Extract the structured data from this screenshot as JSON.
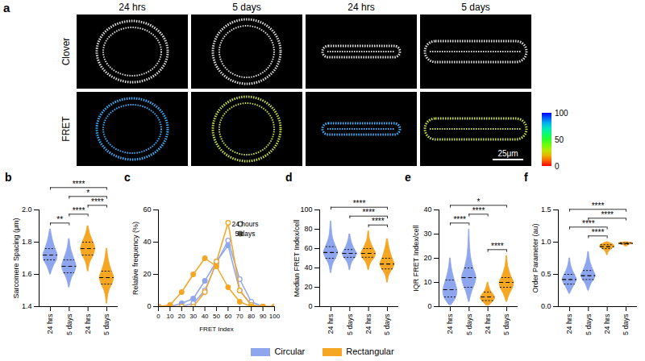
{
  "figure": {
    "panel_a": {
      "label": "a",
      "columns": [
        "24 hrs",
        "5 days",
        "24 hrs",
        "5 days"
      ],
      "rows": [
        "Clover",
        "FRET"
      ],
      "colorbar": {
        "range": [
          0,
          100
        ],
        "ticks": [
          100,
          50,
          0
        ]
      },
      "scale_bar": "25μm"
    },
    "legend": [
      {
        "name": "Circular",
        "color": "#8ea6ee"
      },
      {
        "name": "Rectangular",
        "color": "#f5a623"
      }
    ]
  },
  "chart_data": [
    {
      "label": "b",
      "type": "violin",
      "ylabel": "Sarcomere Spacing (μm)",
      "categories": [
        "24 hrs",
        "5 days",
        "24 hrs",
        "5 days"
      ],
      "colors": [
        "#8ea6ee",
        "#8ea6ee",
        "#f5a623",
        "#f5a623"
      ],
      "ylim": [
        1.4,
        2.0
      ],
      "yticks": [
        1.4,
        1.6,
        1.8,
        {
          "value": 2,
          "label": "2.0"
        }
      ],
      "violins": [
        {
          "y": [
            1.6,
            1.65,
            1.69,
            1.72,
            1.76,
            1.82,
            1.88
          ],
          "width": [
            0.05,
            0.45,
            0.9,
            1.0,
            0.7,
            0.3,
            0.05
          ],
          "median": 1.72,
          "q1": 1.69,
          "q3": 1.76
        },
        {
          "y": [
            1.52,
            1.58,
            1.62,
            1.65,
            1.69,
            1.75,
            1.82
          ],
          "width": [
            0.05,
            0.4,
            0.85,
            1.0,
            0.75,
            0.3,
            0.05
          ],
          "median": 1.65,
          "q1": 1.61,
          "q3": 1.69
        },
        {
          "y": [
            1.62,
            1.68,
            1.72,
            1.76,
            1.8,
            1.85,
            1.9
          ],
          "width": [
            0.05,
            0.35,
            0.8,
            1.0,
            0.75,
            0.3,
            0.05
          ],
          "median": 1.76,
          "q1": 1.72,
          "q3": 1.8
        },
        {
          "y": [
            1.42,
            1.5,
            1.55,
            1.58,
            1.62,
            1.68,
            1.76
          ],
          "width": [
            0.05,
            0.35,
            0.85,
            1.0,
            0.7,
            0.3,
            0.05
          ],
          "median": 1.58,
          "q1": 1.54,
          "q3": 1.62
        }
      ],
      "comparisons": [
        {
          "from": 0,
          "to": 1,
          "label": "**"
        },
        {
          "from": 1,
          "to": 2,
          "label": "****"
        },
        {
          "from": 2,
          "to": 3,
          "label": "****"
        },
        {
          "from": 1,
          "to": 3,
          "label": "*"
        },
        {
          "from": 0,
          "to": 3,
          "label": "****"
        }
      ]
    },
    {
      "label": "c",
      "type": "line",
      "xlabel": "FRET Index",
      "ylabel": "Relative frequency (%)",
      "x": [
        0,
        10,
        20,
        30,
        40,
        50,
        60,
        70,
        80,
        90,
        100
      ],
      "xlim": [
        0,
        100
      ],
      "xticks": [
        0,
        10,
        20,
        30,
        40,
        50,
        60,
        70,
        80,
        90,
        100
      ],
      "ylim": [
        0,
        60
      ],
      "yticks": [
        0,
        20,
        40,
        60
      ],
      "legend": "top-right",
      "series": [
        {
          "name": "24 hours",
          "color": "#8ea6ee",
          "marker": "circle-open",
          "values": [
            0,
            0,
            0,
            2,
            10,
            27,
            41,
            17,
            3,
            0,
            0
          ]
        },
        {
          "name": "5 days",
          "color": "#8ea6ee",
          "marker": "circle",
          "values": [
            0,
            0,
            2,
            5,
            16,
            28,
            38,
            10,
            1,
            0,
            0
          ]
        },
        {
          "name": "24 hours",
          "color": "#f5a623",
          "marker": "circle-open",
          "values": [
            0,
            0,
            0,
            0,
            9,
            28,
            52,
            10,
            1,
            0,
            0
          ]
        },
        {
          "name": "5 days",
          "color": "#f5a623",
          "marker": "circle",
          "values": [
            0,
            1,
            9,
            20,
            30,
            25,
            12,
            3,
            0,
            0,
            0
          ]
        }
      ]
    },
    {
      "label": "d",
      "type": "violin",
      "ylabel": "Median FRET Index/cell",
      "categories": [
        "24 hrs",
        "5 days",
        "24 hrs",
        "5 days"
      ],
      "colors": [
        "#8ea6ee",
        "#8ea6ee",
        "#f5a623",
        "#f5a623"
      ],
      "ylim": [
        0,
        100
      ],
      "yticks": [
        0,
        20,
        40,
        60,
        80,
        100
      ],
      "violins": [
        {
          "y": [
            35,
            45,
            52,
            56,
            62,
            72,
            88
          ],
          "width": [
            0.05,
            0.35,
            0.85,
            1.0,
            0.7,
            0.25,
            0.05
          ],
          "median": 56,
          "q1": 50,
          "q3": 62
        },
        {
          "y": [
            38,
            46,
            52,
            55,
            59,
            66,
            75
          ],
          "width": [
            0.05,
            0.35,
            0.9,
            1.0,
            0.7,
            0.3,
            0.05
          ],
          "median": 55,
          "q1": 51,
          "q3": 59
        },
        {
          "y": [
            38,
            46,
            51,
            55,
            60,
            68,
            78
          ],
          "width": [
            0.05,
            0.4,
            0.9,
            1.0,
            0.7,
            0.25,
            0.05
          ],
          "median": 55,
          "q1": 51,
          "q3": 60
        },
        {
          "y": [
            25,
            34,
            40,
            44,
            50,
            60,
            70
          ],
          "width": [
            0.05,
            0.35,
            0.85,
            1.0,
            0.7,
            0.3,
            0.05
          ],
          "median": 44,
          "q1": 39,
          "q3": 50
        }
      ],
      "comparisons": [
        {
          "from": 2,
          "to": 3,
          "label": "****"
        },
        {
          "from": 1,
          "to": 3,
          "label": "****"
        },
        {
          "from": 0,
          "to": 3,
          "label": "****"
        }
      ]
    },
    {
      "label": "e",
      "type": "violin",
      "ylabel": "IQR FRET Index/cell",
      "categories": [
        "24 hrs",
        "5 days",
        "24 hrs",
        "5 days"
      ],
      "colors": [
        "#8ea6ee",
        "#8ea6ee",
        "#f5a623",
        "#f5a623"
      ],
      "ylim": [
        0,
        40
      ],
      "yticks": [
        0,
        10,
        20,
        30,
        40
      ],
      "violins": [
        {
          "y": [
            0.5,
            3,
            6,
            8,
            12,
            16,
            20
          ],
          "width": [
            0.1,
            0.7,
            1.0,
            0.9,
            0.5,
            0.2,
            0.05
          ],
          "median": 7,
          "q1": 4,
          "q3": 11
        },
        {
          "y": [
            2,
            6,
            10,
            12,
            16,
            22,
            32
          ],
          "width": [
            0.05,
            0.4,
            0.9,
            1.0,
            0.6,
            0.2,
            0.03
          ],
          "median": 12,
          "q1": 8,
          "q3": 16
        },
        {
          "y": [
            0.5,
            2,
            3.5,
            4.5,
            6,
            8,
            10
          ],
          "width": [
            0.2,
            0.7,
            1.0,
            0.9,
            0.5,
            0.2,
            0.05
          ],
          "median": 4,
          "q1": 2.5,
          "q3": 6
        },
        {
          "y": [
            2,
            5,
            8,
            10,
            12,
            16,
            21
          ],
          "width": [
            0.05,
            0.4,
            0.9,
            1.0,
            0.7,
            0.25,
            0.05
          ],
          "median": 10,
          "q1": 8,
          "q3": 12
        }
      ],
      "comparisons": [
        {
          "from": 0,
          "to": 1,
          "label": "****"
        },
        {
          "from": 2,
          "to": 3,
          "label": "****"
        },
        {
          "from": 1,
          "to": 2,
          "label": "****"
        },
        {
          "from": 0,
          "to": 3,
          "label": "*"
        }
      ]
    },
    {
      "label": "f",
      "type": "violin",
      "ylabel": "Order Parameter (au)",
      "categories": [
        "24 hrs",
        "5 days",
        "24 hrs",
        "5 days"
      ],
      "colors": [
        "#8ea6ee",
        "#8ea6ee",
        "#f5a623",
        "#f5a623"
      ],
      "ylim": [
        0,
        1.5
      ],
      "yticks": [
        {
          "value": 0,
          "label": "0.0"
        },
        0.5,
        {
          "value": 1,
          "label": "1.0"
        },
        1.5
      ],
      "violins": [
        {
          "y": [
            0.2,
            0.3,
            0.38,
            0.42,
            0.5,
            0.6,
            0.75
          ],
          "width": [
            0.05,
            0.5,
            0.9,
            1.0,
            0.7,
            0.3,
            0.05
          ],
          "median": 0.42,
          "q1": 0.35,
          "q3": 0.5
        },
        {
          "y": [
            0.25,
            0.35,
            0.44,
            0.48,
            0.56,
            0.68,
            0.85
          ],
          "width": [
            0.05,
            0.4,
            0.9,
            1.0,
            0.7,
            0.3,
            0.05
          ],
          "median": 0.48,
          "q1": 0.42,
          "q3": 0.56
        },
        {
          "y": [
            0.8,
            0.86,
            0.9,
            0.93,
            0.96,
            0.98,
            1.0
          ],
          "width": [
            0.05,
            0.3,
            0.7,
            1.0,
            0.9,
            0.5,
            0.1
          ],
          "median": 0.93,
          "q1": 0.9,
          "q3": 0.96
        },
        {
          "y": [
            0.93,
            0.95,
            0.97,
            0.98,
            0.99,
            0.995,
            1.0
          ],
          "width": [
            0.05,
            0.3,
            0.7,
            1.0,
            0.8,
            0.5,
            0.1
          ],
          "median": 0.98,
          "q1": 0.97,
          "q3": 0.99
        }
      ],
      "comparisons": [
        {
          "from": 1,
          "to": 2,
          "label": "****"
        },
        {
          "from": 0,
          "to": 2,
          "label": "****"
        },
        {
          "from": 1,
          "to": 3,
          "label": "****"
        },
        {
          "from": 0,
          "to": 3,
          "label": "****"
        }
      ]
    }
  ]
}
